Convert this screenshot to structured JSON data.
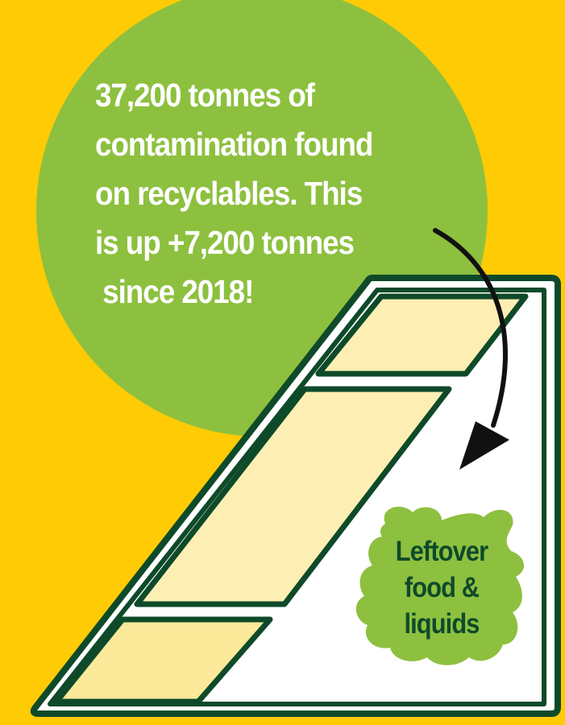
{
  "headline": {
    "lines": [
      "37,200 tonnes of",
      "contamination found",
      "on recyclables. This",
      "is up +7,200 tonnes",
      " since 2018!"
    ]
  },
  "blob_label": {
    "lines": [
      "Leftover",
      "food &",
      "liquids"
    ]
  },
  "colors": {
    "background": "#FFCB05",
    "circle": "#8DC03F",
    "outline": "#0E4A2A",
    "panel_fill": "#FCE99A",
    "blob": "#8DC03F",
    "arrow": "#111111",
    "text_light": "#FFFFFF",
    "text_dark": "#0E4A2A"
  },
  "icons": {
    "container": "recycling-bin-icon",
    "arrow": "curved-arrow-icon",
    "splat": "food-splat-icon"
  }
}
